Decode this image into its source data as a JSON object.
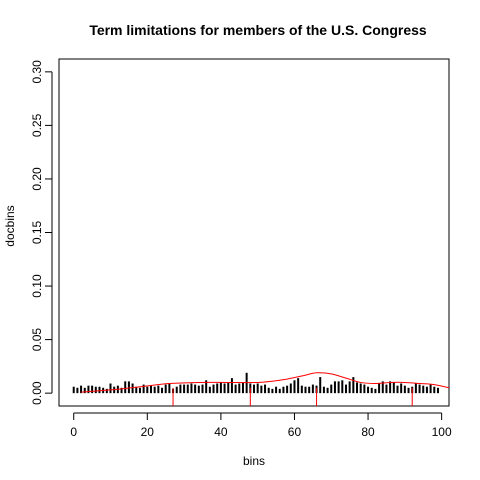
{
  "chart_data": {
    "type": "bar",
    "title": "Term limitations for members of the U.S. Congress",
    "xlabel": "bins",
    "ylabel": "docbins",
    "xlim": [
      -4,
      102
    ],
    "ylim": [
      -0.012,
      0.312
    ],
    "x_ticks": [
      0,
      20,
      40,
      60,
      80,
      100
    ],
    "y_ticks": [
      0.0,
      0.05,
      0.1,
      0.15,
      0.2,
      0.25,
      0.3
    ],
    "y_tick_labels": [
      "0.00",
      "0.05",
      "0.10",
      "0.15",
      "0.20",
      "0.25",
      "0.30"
    ],
    "bars": {
      "color": "#000000",
      "x": [
        0,
        1,
        2,
        3,
        4,
        5,
        6,
        7,
        8,
        9,
        10,
        11,
        12,
        13,
        14,
        15,
        16,
        17,
        18,
        19,
        20,
        21,
        22,
        23,
        24,
        25,
        26,
        27,
        28,
        29,
        30,
        31,
        32,
        33,
        34,
        35,
        36,
        37,
        38,
        39,
        40,
        41,
        42,
        43,
        44,
        45,
        46,
        47,
        48,
        49,
        50,
        51,
        52,
        53,
        54,
        55,
        56,
        57,
        58,
        59,
        60,
        61,
        62,
        63,
        64,
        65,
        66,
        67,
        68,
        69,
        70,
        71,
        72,
        73,
        74,
        75,
        76,
        77,
        78,
        79,
        80,
        81,
        82,
        83,
        84,
        85,
        86,
        87,
        88,
        89,
        90,
        91,
        92,
        93,
        94,
        95,
        96,
        97,
        98,
        99
      ],
      "values": [
        0.006,
        0.005,
        0.007,
        0.005,
        0.007,
        0.007,
        0.006,
        0.006,
        0.005,
        0.004,
        0.009,
        0.006,
        0.007,
        0.005,
        0.011,
        0.011,
        0.009,
        0.006,
        0.005,
        0.008,
        0.006,
        0.007,
        0.006,
        0.007,
        0.005,
        0.008,
        0.009,
        0.004,
        0.006,
        0.008,
        0.008,
        0.008,
        0.009,
        0.008,
        0.007,
        0.008,
        0.012,
        0.006,
        0.008,
        0.009,
        0.01,
        0.009,
        0.01,
        0.014,
        0.008,
        0.009,
        0.01,
        0.019,
        0.009,
        0.008,
        0.009,
        0.007,
        0.008,
        0.005,
        0.004,
        0.006,
        0.004,
        0.006,
        0.007,
        0.009,
        0.012,
        0.014,
        0.007,
        0.006,
        0.006,
        0.008,
        0.007,
        0.015,
        0.006,
        0.005,
        0.008,
        0.011,
        0.011,
        0.012,
        0.008,
        0.011,
        0.015,
        0.01,
        0.009,
        0.008,
        0.006,
        0.005,
        0.004,
        0.009,
        0.011,
        0.008,
        0.011,
        0.01,
        0.007,
        0.009,
        0.007,
        0.005,
        0.006,
        0.009,
        0.008,
        0.007,
        0.006,
        0.008,
        0.006,
        0.005
      ]
    },
    "density_curve": {
      "color": "#ff0000",
      "x": [
        2,
        10,
        18,
        26,
        34,
        42,
        50,
        56,
        62,
        66,
        70,
        74,
        78,
        82,
        86,
        90,
        94,
        98,
        102
      ],
      "y": [
        0.001,
        0.003,
        0.006,
        0.009,
        0.01,
        0.01,
        0.01,
        0.012,
        0.016,
        0.019,
        0.018,
        0.014,
        0.01,
        0.009,
        0.01,
        0.01,
        0.009,
        0.008,
        0.005
      ]
    },
    "rug_marks": {
      "color": "#ff0000",
      "x": [
        27,
        48,
        66,
        92
      ]
    }
  }
}
